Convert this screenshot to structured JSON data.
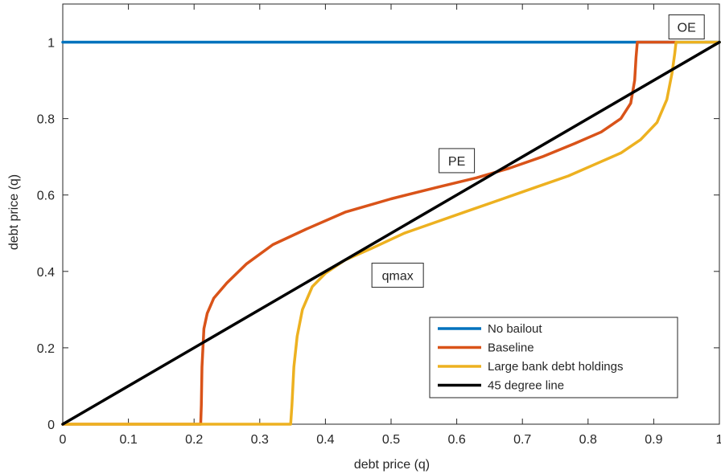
{
  "chart_data": {
    "type": "line",
    "xlabel": "debt price (q)",
    "ylabel": "debt price (q)",
    "xlim": [
      0,
      1
    ],
    "ylim": [
      0,
      1.1
    ],
    "x_ticks": [
      0,
      0.1,
      0.2,
      0.3,
      0.4,
      0.5,
      0.6,
      0.7,
      0.8,
      0.9,
      1
    ],
    "x_tick_labels": [
      "0",
      "0.1",
      "0.2",
      "0.3",
      "0.4",
      "0.5",
      "0.6",
      "0.7",
      "0.8",
      "0.9",
      "1"
    ],
    "y_ticks": [
      0,
      0.2,
      0.4,
      0.6,
      0.8,
      1
    ],
    "y_tick_labels": [
      "0",
      "0.2",
      "0.4",
      "0.6",
      "0.8",
      "1"
    ],
    "grid": false,
    "legend_position": "bottom-right",
    "series": [
      {
        "name": "No bailout",
        "color": "#0072BD",
        "points": [
          [
            0,
            1
          ],
          [
            1,
            1
          ]
        ]
      },
      {
        "name": "Baseline",
        "color": "#D95319",
        "points": [
          [
            0,
            0
          ],
          [
            0.21,
            0
          ],
          [
            0.211,
            0.05
          ],
          [
            0.212,
            0.15
          ],
          [
            0.215,
            0.25
          ],
          [
            0.22,
            0.29
          ],
          [
            0.23,
            0.33
          ],
          [
            0.25,
            0.37
          ],
          [
            0.28,
            0.42
          ],
          [
            0.32,
            0.47
          ],
          [
            0.37,
            0.51
          ],
          [
            0.43,
            0.555
          ],
          [
            0.5,
            0.59
          ],
          [
            0.57,
            0.62
          ],
          [
            0.63,
            0.645
          ],
          [
            0.68,
            0.67
          ],
          [
            0.73,
            0.7
          ],
          [
            0.78,
            0.735
          ],
          [
            0.82,
            0.765
          ],
          [
            0.85,
            0.8
          ],
          [
            0.865,
            0.84
          ],
          [
            0.871,
            0.9
          ],
          [
            0.873,
            0.96
          ],
          [
            0.875,
            1
          ],
          [
            0.935,
            1
          ]
        ]
      },
      {
        "name": "Large bank debt holdings",
        "color": "#EDB120",
        "points": [
          [
            0,
            0
          ],
          [
            0.347,
            0
          ],
          [
            0.349,
            0.05
          ],
          [
            0.352,
            0.15
          ],
          [
            0.357,
            0.23
          ],
          [
            0.365,
            0.3
          ],
          [
            0.38,
            0.36
          ],
          [
            0.4,
            0.395
          ],
          [
            0.43,
            0.43
          ],
          [
            0.47,
            0.46
          ],
          [
            0.52,
            0.5
          ],
          [
            0.57,
            0.53
          ],
          [
            0.62,
            0.56
          ],
          [
            0.67,
            0.59
          ],
          [
            0.72,
            0.62
          ],
          [
            0.77,
            0.65
          ],
          [
            0.81,
            0.68
          ],
          [
            0.85,
            0.71
          ],
          [
            0.88,
            0.745
          ],
          [
            0.905,
            0.79
          ],
          [
            0.92,
            0.85
          ],
          [
            0.928,
            0.92
          ],
          [
            0.932,
            0.97
          ],
          [
            0.934,
            1
          ],
          [
            1,
            1
          ]
        ]
      },
      {
        "name": "45 degree line",
        "color": "#000000",
        "points": [
          [
            0,
            0
          ],
          [
            1,
            1
          ]
        ]
      }
    ],
    "annotations": [
      {
        "text": "OE",
        "x": 0.95,
        "y": 1.04
      },
      {
        "text": "PE",
        "x": 0.6,
        "y": 0.69
      },
      {
        "text": "qmax",
        "x": 0.51,
        "y": 0.39
      }
    ]
  }
}
